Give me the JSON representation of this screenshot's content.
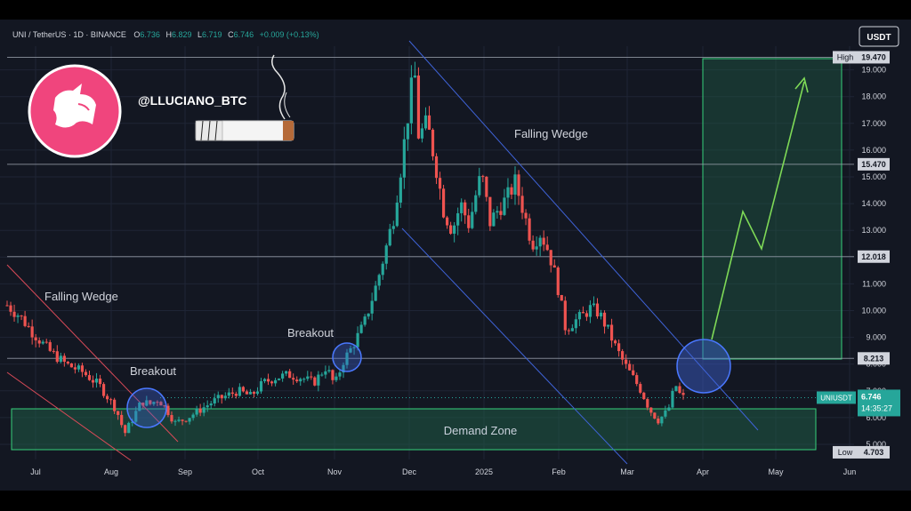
{
  "header": {
    "symbol": "UNI / TetherUS · 1D · BINANCE",
    "o_label": "O",
    "o_val": "6.736",
    "h_label": "H",
    "h_val": "6.829",
    "l_label": "L",
    "l_val": "6.719",
    "c_label": "C",
    "c_val": "6.746",
    "change": "+0.009 (+0.13%)",
    "currency_button": "USDT"
  },
  "branding": {
    "handle": "@LLUCIANO_BTC",
    "logo_icon": "uniswap-unicorn-icon",
    "cigarette_icon": "cigarette-icon"
  },
  "colors": {
    "background": "#131722",
    "up": "#26a69a",
    "down": "#ef5350",
    "wedge": "#3f63d8",
    "early_wedge": "#d94a58",
    "projection": "#7ed957",
    "logo": "#f0457d",
    "grid": "#1f2535"
  },
  "chart_data": {
    "type": "candlestick",
    "symbol": "UNIUSDT",
    "interval": "1D",
    "ylim": [
      4.6,
      19.8
    ],
    "y_ticks": [
      "5.000",
      "6.000",
      "7.000",
      "8.000",
      "9.000",
      "10.000",
      "11.000",
      "12.000",
      "13.000",
      "14.000",
      "15.000",
      "16.000",
      "17.000",
      "18.000",
      "19.000"
    ],
    "x_ticks": [
      "Jul",
      "Aug",
      "Sep",
      "Oct",
      "Nov",
      "Dec",
      "2025",
      "Feb",
      "Mar",
      "Apr",
      "May",
      "Jun"
    ],
    "price_path": [
      [
        0,
        10.2
      ],
      [
        3,
        9.8
      ],
      [
        6,
        9.2
      ],
      [
        10,
        8.5
      ],
      [
        14,
        8.0
      ],
      [
        18,
        7.7
      ],
      [
        22,
        7.2
      ],
      [
        26,
        6.3
      ],
      [
        28,
        5.4
      ],
      [
        30,
        6.0
      ],
      [
        32,
        6.6
      ],
      [
        34,
        6.5
      ],
      [
        36,
        6.7
      ],
      [
        38,
        6.3
      ],
      [
        40,
        5.8
      ],
      [
        43,
        6.0
      ],
      [
        46,
        6.3
      ],
      [
        49,
        6.6
      ],
      [
        52,
        6.8
      ],
      [
        55,
        7.0
      ],
      [
        58,
        6.8
      ],
      [
        61,
        7.3
      ],
      [
        64,
        7.5
      ],
      [
        67,
        7.6
      ],
      [
        70,
        7.5
      ],
      [
        73,
        7.3
      ],
      [
        76,
        7.9
      ],
      [
        78,
        7.2
      ],
      [
        80,
        8.1
      ],
      [
        82,
        8.6
      ],
      [
        85,
        9.5
      ],
      [
        88,
        11.0
      ],
      [
        90,
        12.2
      ],
      [
        92,
        13.5
      ],
      [
        94,
        15.6
      ],
      [
        96,
        18.0
      ],
      [
        97,
        19.0
      ],
      [
        98,
        16.5
      ],
      [
        100,
        17.0
      ],
      [
        102,
        15.5
      ],
      [
        104,
        13.7
      ],
      [
        106,
        13.0
      ],
      [
        108,
        14.0
      ],
      [
        110,
        13.2
      ],
      [
        112,
        14.6
      ],
      [
        113,
        15.1
      ],
      [
        115,
        13.3
      ],
      [
        117,
        13.8
      ],
      [
        119,
        14.2
      ],
      [
        121,
        14.8
      ],
      [
        123,
        13.7
      ],
      [
        125,
        12.5
      ],
      [
        127,
        12.9
      ],
      [
        129,
        12.2
      ],
      [
        131,
        11.0
      ],
      [
        133,
        9.3
      ],
      [
        135,
        9.6
      ],
      [
        137,
        9.8
      ],
      [
        139,
        10.1
      ],
      [
        141,
        9.9
      ],
      [
        143,
        9.3
      ],
      [
        145,
        8.6
      ],
      [
        147,
        8.0
      ],
      [
        149,
        7.5
      ],
      [
        151,
        7.0
      ],
      [
        153,
        6.3
      ],
      [
        155,
        5.9
      ],
      [
        157,
        6.2
      ],
      [
        158,
        6.5
      ],
      [
        159,
        7.3
      ],
      [
        160,
        6.9
      ],
      [
        161,
        6.75
      ]
    ],
    "current_price": "6.746",
    "countdown": "14:35:27",
    "horizontal_levels": [
      {
        "label": "19.470",
        "value": 19.47,
        "tag": "High"
      },
      {
        "label": "15.470",
        "value": 15.47
      },
      {
        "label": "12.018",
        "value": 12.018
      },
      {
        "label": "8.213",
        "value": 8.213
      }
    ],
    "low": {
      "label": "4.703",
      "value": 4.703,
      "tag": "Low"
    },
    "demand_zone": {
      "label": "Demand Zone",
      "from": 4.8,
      "to": 6.35
    },
    "target_zone": {
      "from": 8.213,
      "to": 19.3
    },
    "projection_path": [
      [
        8.6
      ],
      [
        13.7
      ],
      [
        12.4
      ],
      [
        18.5
      ]
    ],
    "annotations": {
      "falling_wedge_1": "Falling Wedge",
      "falling_wedge_2": "Falling Wedge",
      "breakout_1": "Breakout",
      "breakout_2": "Breakout"
    },
    "current_symbol_tag": "UNIUSDT"
  }
}
